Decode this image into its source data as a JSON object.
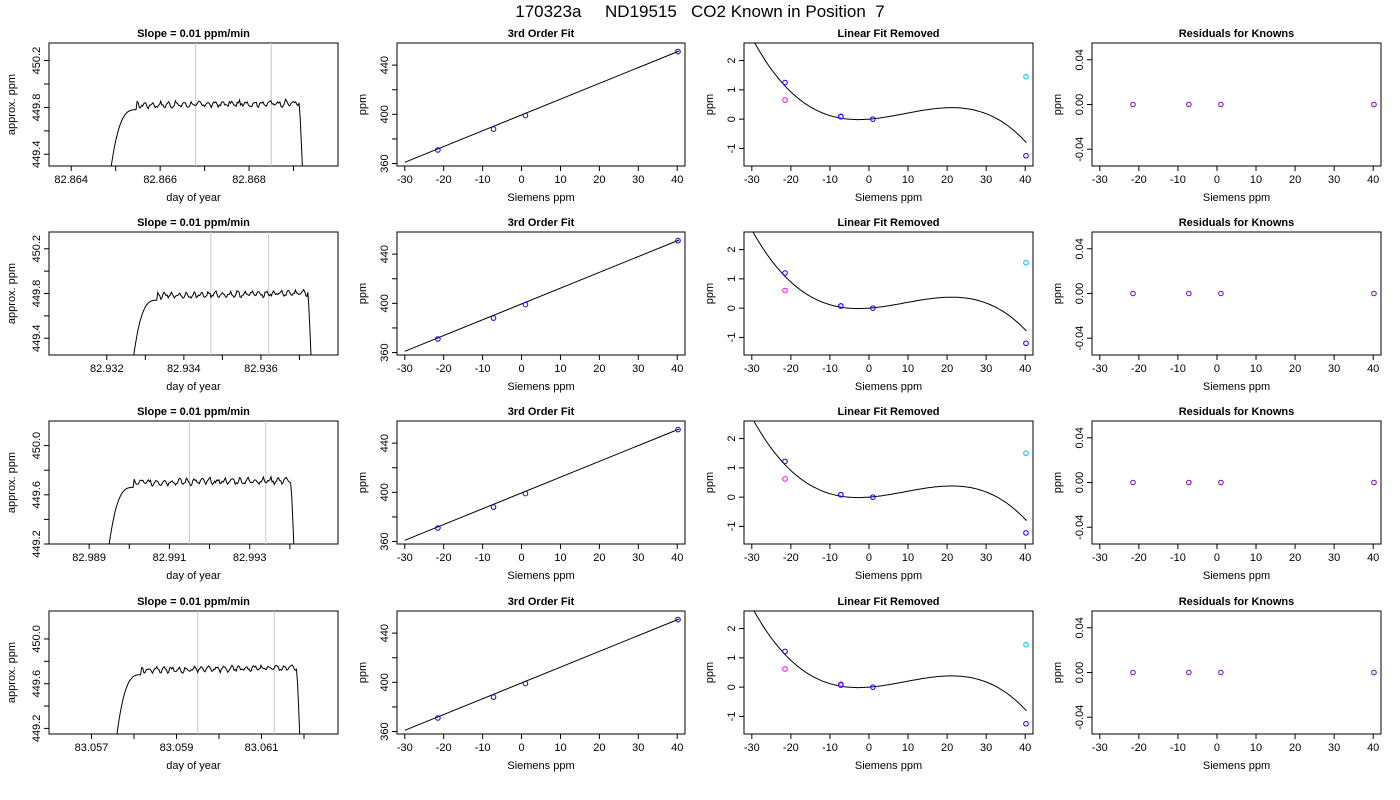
{
  "page_title": "170323a     ND19515   CO2 Known in Position  7",
  "colors": {
    "curve": "#000000",
    "point_blue": "#0000ff",
    "point_magenta": "#ff00ff",
    "point_cyan": "#00bfff",
    "point_purple": "#8000c0",
    "vline": "#c8c8c8",
    "frame": "#000000"
  },
  "chart_data": [
    {
      "type": "line",
      "row": 0,
      "title": "Slope =  0.01  ppm/min",
      "xlabel": "day of year",
      "ylabel": "approx. ppm",
      "xlim": [
        82.8635,
        82.87
      ],
      "ylim": [
        449.3,
        450.35
      ],
      "xticks": [
        82.864,
        82.865,
        82.866,
        82.867,
        82.868,
        82.869
      ],
      "xtick_labels": [
        "82.864",
        "",
        "82.866",
        "",
        "82.868",
        ""
      ],
      "yticks": [
        449.4,
        449.6,
        449.8,
        450.0,
        450.2
      ],
      "ytick_labels": [
        "449.4",
        "",
        "449.8",
        "",
        "450.2"
      ],
      "vlines": [
        82.8668,
        82.8685
      ],
      "x_start": 82.8649,
      "x_end": 82.8692,
      "plateau": 449.82,
      "drop_to": 449.3,
      "drift": 0.02,
      "slope": 0.01
    },
    {
      "type": "scatter",
      "row": 0,
      "title": "3rd Order Fit",
      "xlabel": "Siemens ppm",
      "ylabel": "ppm",
      "xlim": [
        -32,
        42
      ],
      "ylim": [
        358,
        458
      ],
      "xticks": [
        -30,
        -20,
        -10,
        0,
        10,
        20,
        30,
        40
      ],
      "xtick_labels": [
        "-30",
        "-20",
        "-10",
        "0",
        "10",
        "20",
        "30",
        "40"
      ],
      "yticks": [
        360,
        380,
        400,
        420,
        440
      ],
      "ytick_labels": [
        "360",
        "",
        "400",
        "",
        "440"
      ],
      "points": [
        [
          -21.5,
          371
        ],
        [
          -7.2,
          388
        ],
        [
          1.0,
          399
        ],
        [
          40.2,
          451
        ]
      ],
      "fit_line": [
        [
          -30,
          361
        ],
        [
          40.5,
          451.5
        ]
      ]
    },
    {
      "type": "scatter",
      "row": 0,
      "title": "Linear Fit Removed",
      "xlabel": "Siemens ppm",
      "ylabel": "ppm",
      "xlim": [
        -32,
        42
      ],
      "ylim": [
        -1.6,
        2.6
      ],
      "xticks": [
        -30,
        -20,
        -10,
        0,
        10,
        20,
        30,
        40
      ],
      "xtick_labels": [
        "-30",
        "-20",
        "-10",
        "0",
        "10",
        "20",
        "30",
        "40"
      ],
      "yticks": [
        -1,
        0,
        1,
        2
      ],
      "ytick_labels": [
        "-1",
        "0",
        "1",
        "2"
      ],
      "points_blue": [
        [
          -21.5,
          1.25
        ],
        [
          -7.2,
          0.08
        ],
        [
          1.0,
          0.0
        ],
        [
          40.2,
          -1.25
        ]
      ],
      "points_magenta": [
        [
          -21.5,
          0.65
        ],
        [
          -7.2,
          0.1
        ]
      ],
      "points_cyan": [
        [
          40.2,
          1.45
        ]
      ],
      "cubic": [
        0.0,
        0.01035,
        0.00165,
        -5.96e-05
      ],
      "curve_x": [
        -30,
        40.3
      ]
    },
    {
      "type": "scatter",
      "row": 0,
      "title": "Residuals for Knowns",
      "xlabel": "Siemens ppm",
      "ylabel": "ppm",
      "xlim": [
        -32,
        42
      ],
      "ylim": [
        -0.055,
        0.055
      ],
      "xticks": [
        -30,
        -20,
        -10,
        0,
        10,
        20,
        30,
        40
      ],
      "xtick_labels": [
        "-30",
        "-20",
        "-10",
        "0",
        "10",
        "20",
        "30",
        "40"
      ],
      "yticks": [
        -0.04,
        0.0,
        0.04
      ],
      "ytick_labels": [
        "-0.04",
        "0.00",
        "0.04"
      ],
      "points": [
        [
          -21.5,
          0.0
        ],
        [
          -7.2,
          0.0
        ],
        [
          1.0,
          0.0
        ],
        [
          40.2,
          0.0
        ]
      ]
    },
    {
      "type": "line",
      "row": 1,
      "title": "Slope =  0.01  ppm/min",
      "xlabel": "day of year",
      "ylabel": "approx. ppm",
      "xlim": [
        82.9305,
        82.938
      ],
      "ylim": [
        449.25,
        450.35
      ],
      "xticks": [
        82.932,
        82.933,
        82.934,
        82.935,
        82.936,
        82.937
      ],
      "xtick_labels": [
        "82.932",
        "",
        "82.934",
        "",
        "82.936",
        ""
      ],
      "yticks": [
        449.4,
        449.6,
        449.8,
        450.0,
        450.2
      ],
      "ytick_labels": [
        "449.4",
        "",
        "449.8",
        "",
        "450.2"
      ],
      "vlines": [
        82.9347,
        82.9362
      ],
      "x_start": 82.9327,
      "x_end": 82.9373,
      "plateau": 449.78,
      "drop_to": 449.25,
      "drift": 0.03,
      "slope": 0.01
    },
    {
      "type": "scatter",
      "row": 1,
      "title": "3rd Order Fit",
      "xlabel": "Siemens ppm",
      "ylabel": "ppm",
      "xlim": [
        -32,
        42
      ],
      "ylim": [
        358,
        458
      ],
      "xticks": [
        -30,
        -20,
        -10,
        0,
        10,
        20,
        30,
        40
      ],
      "xtick_labels": [
        "-30",
        "-20",
        "-10",
        "0",
        "10",
        "20",
        "30",
        "40"
      ],
      "yticks": [
        360,
        380,
        400,
        420,
        440
      ],
      "ytick_labels": [
        "360",
        "",
        "400",
        "",
        "440"
      ],
      "points": [
        [
          -21.5,
          371
        ],
        [
          -7.2,
          388
        ],
        [
          1.0,
          399
        ],
        [
          40.2,
          451
        ]
      ],
      "fit_line": [
        [
          -30,
          361
        ],
        [
          40.5,
          451.5
        ]
      ]
    },
    {
      "type": "scatter",
      "row": 1,
      "title": "Linear Fit Removed",
      "xlabel": "Siemens ppm",
      "ylabel": "ppm",
      "xlim": [
        -32,
        42
      ],
      "ylim": [
        -1.6,
        2.6
      ],
      "xticks": [
        -30,
        -20,
        -10,
        0,
        10,
        20,
        30,
        40
      ],
      "xtick_labels": [
        "-30",
        "-20",
        "-10",
        "0",
        "10",
        "20",
        "30",
        "40"
      ],
      "yticks": [
        -1,
        0,
        1,
        2
      ],
      "ytick_labels": [
        "-1",
        "0",
        "1",
        "2"
      ],
      "points_blue": [
        [
          -21.5,
          1.2
        ],
        [
          -7.2,
          0.07
        ],
        [
          1.0,
          0.0
        ],
        [
          40.2,
          -1.2
        ]
      ],
      "points_magenta": [
        [
          -21.5,
          0.6
        ],
        [
          -7.2,
          0.08
        ]
      ],
      "points_cyan": [
        [
          40.2,
          1.55
        ]
      ],
      "cubic": [
        0.0,
        0.0099,
        0.00158,
        -5.72e-05
      ],
      "curve_x": [
        -30,
        40.3
      ]
    },
    {
      "type": "scatter",
      "row": 1,
      "title": "Residuals for Knowns",
      "xlabel": "Siemens ppm",
      "ylabel": "ppm",
      "xlim": [
        -32,
        42
      ],
      "ylim": [
        -0.055,
        0.055
      ],
      "xticks": [
        -30,
        -20,
        -10,
        0,
        10,
        20,
        30,
        40
      ],
      "xtick_labels": [
        "-30",
        "-20",
        "-10",
        "0",
        "10",
        "20",
        "30",
        "40"
      ],
      "yticks": [
        -0.04,
        0.0,
        0.04
      ],
      "ytick_labels": [
        "-0.04",
        "0.00",
        "0.04"
      ],
      "points": [
        [
          -21.5,
          0.0
        ],
        [
          -7.2,
          0.0
        ],
        [
          1.0,
          0.0
        ],
        [
          40.2,
          0.0
        ]
      ]
    },
    {
      "type": "line",
      "row": 2,
      "title": "Slope =  0.01  ppm/min",
      "xlabel": "day of year",
      "ylabel": "approx. ppm",
      "xlim": [
        82.988,
        82.9952
      ],
      "ylim": [
        449.2,
        450.2
      ],
      "xticks": [
        82.989,
        82.99,
        82.991,
        82.992,
        82.993,
        82.994
      ],
      "xtick_labels": [
        "82.989",
        "",
        "82.991",
        "",
        "82.993",
        ""
      ],
      "yticks": [
        449.2,
        449.4,
        449.6,
        449.8,
        450.0
      ],
      "ytick_labels": [
        "449.2",
        "",
        "449.6",
        "",
        "450.0"
      ],
      "vlines": [
        82.9915,
        82.9934
      ],
      "x_start": 82.9895,
      "x_end": 82.9941,
      "plateau": 449.7,
      "drop_to": 449.2,
      "drift": 0.02,
      "slope": 0.01
    },
    {
      "type": "scatter",
      "row": 2,
      "title": "3rd Order Fit",
      "xlabel": "Siemens ppm",
      "ylabel": "ppm",
      "xlim": [
        -32,
        42
      ],
      "ylim": [
        358,
        458
      ],
      "xticks": [
        -30,
        -20,
        -10,
        0,
        10,
        20,
        30,
        40
      ],
      "xtick_labels": [
        "-30",
        "-20",
        "-10",
        "0",
        "10",
        "20",
        "30",
        "40"
      ],
      "yticks": [
        360,
        380,
        400,
        420,
        440
      ],
      "ytick_labels": [
        "360",
        "",
        "400",
        "",
        "440"
      ],
      "points": [
        [
          -21.5,
          371
        ],
        [
          -7.2,
          388
        ],
        [
          1.0,
          399
        ],
        [
          40.2,
          451
        ]
      ],
      "fit_line": [
        [
          -30,
          361
        ],
        [
          40.5,
          451.5
        ]
      ]
    },
    {
      "type": "scatter",
      "row": 2,
      "title": "Linear Fit Removed",
      "xlabel": "Siemens ppm",
      "ylabel": "ppm",
      "xlim": [
        -32,
        42
      ],
      "ylim": [
        -1.6,
        2.6
      ],
      "xticks": [
        -30,
        -20,
        -10,
        0,
        10,
        20,
        30,
        40
      ],
      "xtick_labels": [
        "-30",
        "-20",
        "-10",
        "0",
        "10",
        "20",
        "30",
        "40"
      ],
      "yticks": [
        -1,
        0,
        1,
        2
      ],
      "ytick_labels": [
        "-1",
        "0",
        "1",
        "2"
      ],
      "points_blue": [
        [
          -21.5,
          1.22
        ],
        [
          -7.2,
          0.08
        ],
        [
          1.0,
          0.0
        ],
        [
          40.2,
          -1.22
        ]
      ],
      "points_magenta": [
        [
          -21.5,
          0.62
        ],
        [
          -7.2,
          0.09
        ]
      ],
      "points_cyan": [
        [
          40.2,
          1.5
        ]
      ],
      "cubic": [
        0.0,
        0.0101,
        0.00161,
        -5.84e-05
      ],
      "curve_x": [
        -30,
        40.3
      ]
    },
    {
      "type": "scatter",
      "row": 2,
      "title": "Residuals for Knowns",
      "xlabel": "Siemens ppm",
      "ylabel": "ppm",
      "xlim": [
        -32,
        42
      ],
      "ylim": [
        -0.055,
        0.055
      ],
      "xticks": [
        -30,
        -20,
        -10,
        0,
        10,
        20,
        30,
        40
      ],
      "xtick_labels": [
        "-30",
        "-20",
        "-10",
        "0",
        "10",
        "20",
        "30",
        "40"
      ],
      "yticks": [
        -0.04,
        0.0,
        0.04
      ],
      "ytick_labels": [
        "-0.04",
        "0.00",
        "0.04"
      ],
      "points": [
        [
          -21.5,
          0.0
        ],
        [
          -7.2,
          0.0
        ],
        [
          1.0,
          0.0
        ],
        [
          40.2,
          0.0
        ]
      ]
    },
    {
      "type": "line",
      "row": 3,
      "title": "Slope =  0.01  ppm/min",
      "xlabel": "day of year",
      "ylabel": "approx. ppm",
      "xlim": [
        83.056,
        83.0628
      ],
      "ylim": [
        449.15,
        450.25
      ],
      "xticks": [
        83.057,
        83.058,
        83.059,
        83.06,
        83.061,
        83.062
      ],
      "xtick_labels": [
        "83.057",
        "",
        "83.059",
        "",
        "83.061",
        ""
      ],
      "yticks": [
        449.2,
        449.4,
        449.6,
        449.8,
        450.0
      ],
      "ytick_labels": [
        "449.2",
        "",
        "449.6",
        "",
        "450.0"
      ],
      "vlines": [
        83.0595,
        83.0613
      ],
      "x_start": 83.0576,
      "x_end": 83.0619,
      "plateau": 449.72,
      "drop_to": 449.15,
      "drift": 0.03,
      "slope": 0.01
    },
    {
      "type": "scatter",
      "row": 3,
      "title": "3rd Order Fit",
      "xlabel": "Siemens ppm",
      "ylabel": "ppm",
      "xlim": [
        -32,
        42
      ],
      "ylim": [
        358,
        458
      ],
      "xticks": [
        -30,
        -20,
        -10,
        0,
        10,
        20,
        30,
        40
      ],
      "xtick_labels": [
        "-30",
        "-20",
        "-10",
        "0",
        "10",
        "20",
        "30",
        "40"
      ],
      "yticks": [
        360,
        380,
        400,
        420,
        440
      ],
      "ytick_labels": [
        "360",
        "",
        "400",
        "",
        "440"
      ],
      "points": [
        [
          -21.5,
          371
        ],
        [
          -7.2,
          388
        ],
        [
          1.0,
          399
        ],
        [
          40.2,
          451
        ]
      ],
      "fit_line": [
        [
          -30,
          361
        ],
        [
          40.5,
          451.5
        ]
      ]
    },
    {
      "type": "scatter",
      "row": 3,
      "title": "Linear Fit Removed",
      "xlabel": "Siemens ppm",
      "ylabel": "ppm",
      "xlim": [
        -32,
        42
      ],
      "ylim": [
        -1.6,
        2.6
      ],
      "xticks": [
        -30,
        -20,
        -10,
        0,
        10,
        20,
        30,
        40
      ],
      "xtick_labels": [
        "-30",
        "-20",
        "-10",
        "0",
        "10",
        "20",
        "30",
        "40"
      ],
      "yticks": [
        -1,
        0,
        1,
        2
      ],
      "ytick_labels": [
        "-1",
        "0",
        "1",
        "2"
      ],
      "points_blue": [
        [
          -21.5,
          1.22
        ],
        [
          -7.2,
          0.07
        ],
        [
          1.0,
          0.0
        ],
        [
          40.2,
          -1.25
        ]
      ],
      "points_magenta": [
        [
          -21.5,
          0.62
        ],
        [
          -7.2,
          0.1
        ]
      ],
      "points_cyan": [
        [
          40.2,
          1.45
        ]
      ],
      "cubic": [
        0.0,
        0.0102,
        0.00162,
        -5.88e-05
      ],
      "curve_x": [
        -30,
        40.3
      ]
    },
    {
      "type": "scatter",
      "row": 3,
      "title": "Residuals for Knowns",
      "xlabel": "Siemens ppm",
      "ylabel": "ppm",
      "xlim": [
        -32,
        42
      ],
      "ylim": [
        -0.055,
        0.055
      ],
      "xticks": [
        -30,
        -20,
        -10,
        0,
        10,
        20,
        30,
        40
      ],
      "xtick_labels": [
        "-30",
        "-20",
        "-10",
        "0",
        "10",
        "20",
        "30",
        "40"
      ],
      "yticks": [
        -0.04,
        0.0,
        0.04
      ],
      "ytick_labels": [
        "-0.04",
        "0.00",
        "0.04"
      ],
      "points": [
        [
          -21.5,
          0.0
        ],
        [
          -7.2,
          0.0
        ],
        [
          1.0,
          0.0
        ],
        [
          40.2,
          0.0
        ]
      ]
    }
  ]
}
